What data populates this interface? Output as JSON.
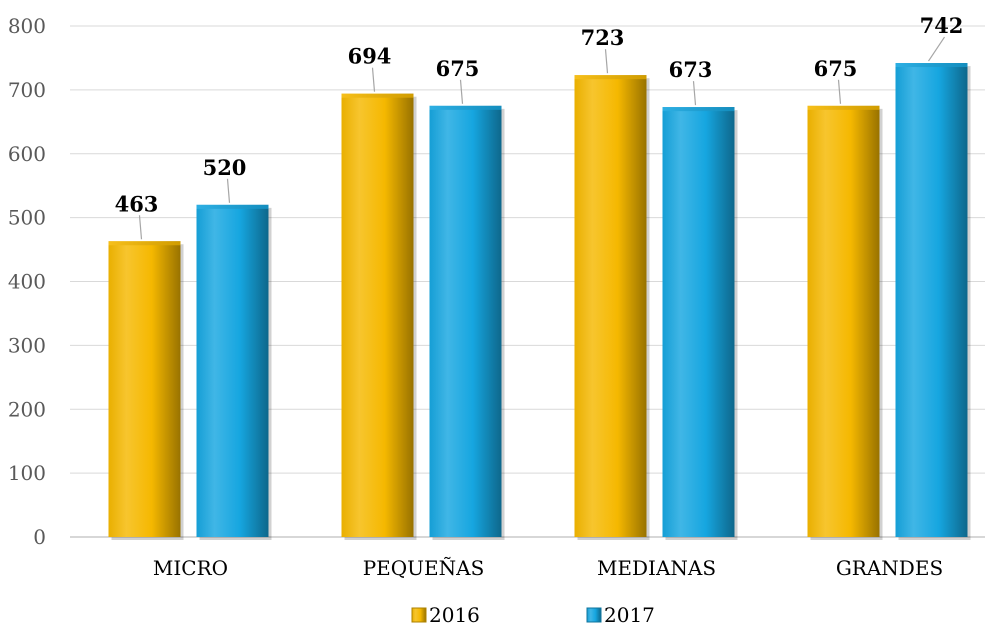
{
  "chart_data": {
    "type": "bar",
    "categories": [
      "MICRO",
      "PEQUEÑAS",
      "MEDIANAS",
      "GRANDES"
    ],
    "series": [
      {
        "name": "2016",
        "values": [
          463,
          694,
          723,
          675
        ],
        "color": "#f5b800"
      },
      {
        "name": "2017",
        "values": [
          520,
          675,
          673,
          742
        ],
        "color": "#16a6e0"
      }
    ],
    "ylim": [
      0,
      800
    ],
    "yticks": [
      0,
      100,
      200,
      300,
      400,
      500,
      600,
      700,
      800
    ],
    "grid": true,
    "legend": "bottom",
    "data_labels": true
  }
}
